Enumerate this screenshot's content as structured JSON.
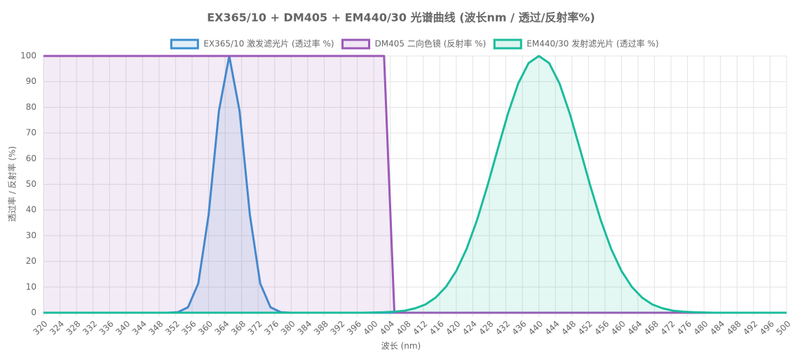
{
  "chart_data": {
    "type": "line",
    "title": "EX365/10 + DM405 + EM440/30 光谱曲线 (波长nm / 透过/反射率%)",
    "x_label": "波长 (nm)",
    "y_label": "透过率 / 反射率 (%)",
    "x": [
      320,
      322.5,
      325,
      327.5,
      330,
      332.5,
      335,
      337.5,
      340,
      342.5,
      345,
      347.5,
      350,
      352.5,
      355,
      357.5,
      360,
      362.5,
      365,
      367.5,
      370,
      372.5,
      375,
      377.5,
      380,
      382.5,
      385,
      387.5,
      390,
      392.5,
      395,
      397.5,
      400,
      402.5,
      405,
      407.5,
      410,
      412.5,
      415,
      417.5,
      420,
      422.5,
      425,
      427.5,
      430,
      432.5,
      435,
      437.5,
      440,
      442.5,
      445,
      447.5,
      450,
      452.5,
      455,
      457.5,
      460,
      462.5,
      465,
      467.5,
      470,
      472.5,
      475,
      477.5,
      480,
      482.5,
      485,
      487.5,
      490,
      492.5,
      495,
      497.5,
      500
    ],
    "series": [
      {
        "name": "EX365/10 激发滤光片 (透过率 %)",
        "color": "#3a8fd1",
        "values": [
          0,
          0,
          0,
          0,
          0,
          0,
          0,
          0,
          0,
          0,
          0,
          0,
          0,
          0.2,
          2.1,
          11.4,
          38.1,
          78.6,
          100,
          78.6,
          38.1,
          11.4,
          2.1,
          0.2,
          0,
          0,
          0,
          0,
          0,
          0,
          0,
          0,
          0,
          0,
          0,
          0,
          0,
          0,
          0,
          0,
          0,
          0,
          0,
          0,
          0,
          0,
          0,
          0,
          0,
          0,
          0,
          0,
          0,
          0,
          0,
          0,
          0,
          0,
          0,
          0,
          0,
          0,
          0,
          0,
          0,
          0,
          0,
          0,
          0,
          0,
          0,
          0,
          0
        ]
      },
      {
        "name": "DM405 二向色镜 (反射率 %)",
        "color": "#9b59b6",
        "values": [
          100,
          100,
          100,
          100,
          100,
          100,
          100,
          100,
          100,
          100,
          100,
          100,
          100,
          100,
          100,
          100,
          100,
          100,
          100,
          100,
          100,
          100,
          100,
          100,
          100,
          100,
          100,
          100,
          100,
          100,
          100,
          100,
          100,
          100,
          0,
          0,
          0,
          0,
          0,
          0,
          0,
          0,
          0,
          0,
          0,
          0,
          0,
          0,
          0,
          0,
          0,
          0,
          0,
          0,
          0,
          0,
          0,
          0,
          0,
          0,
          0,
          0,
          0,
          0,
          0,
          0,
          0,
          0,
          0,
          0,
          0,
          0,
          0
        ]
      },
      {
        "name": "EM440/30 发射滤光片 (透过率 %)",
        "color": "#1abc9c",
        "values": [
          0,
          0,
          0,
          0,
          0,
          0,
          0,
          0,
          0,
          0,
          0,
          0,
          0,
          0,
          0,
          0,
          0,
          0,
          0,
          0,
          0,
          0,
          0,
          0,
          0,
          0,
          0,
          0,
          0,
          0,
          0,
          0,
          0.1,
          0.2,
          0.4,
          0.8,
          1.7,
          3.2,
          5.9,
          10.1,
          16.3,
          24.9,
          36.0,
          49.2,
          63.5,
          77.5,
          89.3,
          97.2,
          100,
          97.2,
          89.3,
          77.5,
          63.5,
          49.2,
          36.0,
          24.9,
          16.3,
          10.1,
          5.9,
          3.2,
          1.7,
          0.8,
          0.4,
          0.2,
          0.1,
          0,
          0,
          0,
          0,
          0,
          0,
          0,
          0
        ]
      }
    ],
    "xlim": [
      320,
      500
    ],
    "xticks": [
      320,
      324,
      328,
      332,
      336,
      340,
      344,
      348,
      352,
      356,
      360,
      364,
      368,
      372,
      376,
      380,
      384,
      388,
      392,
      396,
      400,
      404,
      408,
      412,
      416,
      420,
      424,
      428,
      432,
      436,
      440,
      444,
      448,
      452,
      456,
      460,
      464,
      468,
      472,
      476,
      480,
      484,
      488,
      492,
      496,
      500
    ],
    "ylim": [
      0,
      100
    ],
    "yticks": [
      0,
      10,
      20,
      30,
      40,
      50,
      60,
      70,
      80,
      90,
      100
    ],
    "grid": true,
    "fill": true,
    "legend": "top"
  }
}
